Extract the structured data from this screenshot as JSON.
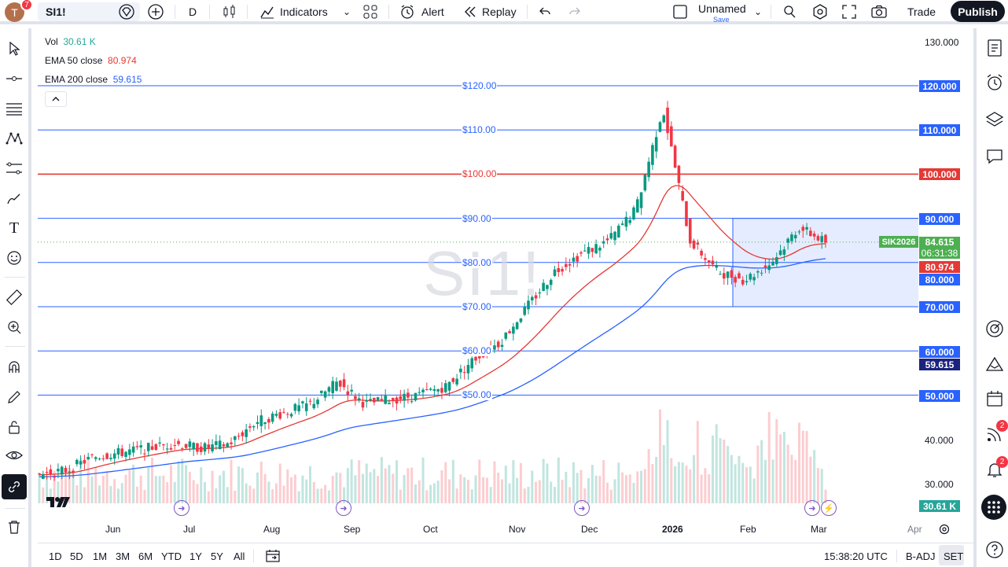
{
  "topbar": {
    "avatar_letter": "T",
    "avatar_badge": "7",
    "symbol": "SI1!",
    "interval": "D",
    "indicators_label": "Indicators",
    "alert_label": "Alert",
    "replay_label": "Replay",
    "layout_name": "Unnamed",
    "layout_save": "Save",
    "trade_label": "Trade",
    "publish_label": "Publish"
  },
  "legend": {
    "vol_label": "Vol",
    "vol_value": "30.61 K",
    "ema50_label": "EMA 50 close",
    "ema50_value": "80.974",
    "ema200_label": "EMA 200 close",
    "ema200_value": "59.615"
  },
  "watermark": "SI1!",
  "price_scale": {
    "labels": [
      "130.000",
      "40.000",
      "30.000"
    ],
    "tags": [
      {
        "text": "120.000",
        "color": "#2962ff"
      },
      {
        "text": "110.000",
        "color": "#2962ff"
      },
      {
        "text": "100.000",
        "color": "#e53935"
      },
      {
        "text": "90.000",
        "color": "#2962ff"
      },
      {
        "text": "84.615",
        "color": "#4caf50"
      },
      {
        "text": "06:31:38",
        "color": "#4caf50"
      },
      {
        "text": "80.974",
        "color": "#e53935"
      },
      {
        "text": "80.000",
        "color": "#2962ff"
      },
      {
        "text": "70.000",
        "color": "#2962ff"
      },
      {
        "text": "60.000",
        "color": "#2962ff"
      },
      {
        "text": "59.615",
        "color": "#1a237e"
      },
      {
        "text": "50.000",
        "color": "#2962ff"
      },
      {
        "text": "30.61 K",
        "color": "#26a69a"
      }
    ],
    "contract_tag": "SIK2026"
  },
  "hlines": [
    {
      "label": "$120.00",
      "price": 120,
      "color": "#2962ff"
    },
    {
      "label": "$110.00",
      "price": 110,
      "color": "#2962ff"
    },
    {
      "label": "$100.00",
      "price": 100,
      "color": "#e53935"
    },
    {
      "label": "$90.00",
      "price": 90,
      "color": "#2962ff"
    },
    {
      "label": "$80.00",
      "price": 80,
      "color": "#2962ff"
    },
    {
      "label": "$70.00",
      "price": 70,
      "color": "#2962ff"
    },
    {
      "label": "$60.00",
      "price": 60,
      "color": "#2962ff"
    },
    {
      "label": "$50.00",
      "price": 50,
      "color": "#2962ff"
    }
  ],
  "time_axis": [
    "Jun",
    "Jul",
    "Aug",
    "Sep",
    "Oct",
    "Nov",
    "Dec",
    "2026",
    "Feb",
    "Mar",
    "Apr"
  ],
  "bottombar": {
    "ranges": [
      "1D",
      "5D",
      "1M",
      "3M",
      "6M",
      "YTD",
      "1Y",
      "5Y",
      "All"
    ],
    "clock": "15:38:20 UTC",
    "adj": "B-ADJ",
    "session": "SET"
  },
  "right_badges": {
    "ideas": "2",
    "alerts": "2"
  },
  "colors": {
    "up": "#089981",
    "down": "#f23645",
    "ema50": "#e53935",
    "ema200": "#2962ff"
  },
  "chart_data": {
    "type": "candlestick",
    "symbol": "SI1!",
    "series": [
      {
        "name": "Price (approx. weekly close)",
        "values": [
          32,
          33,
          36,
          37,
          38,
          39,
          38,
          39,
          44,
          46,
          48,
          53,
          48,
          49,
          50,
          52,
          58,
          62,
          70,
          78,
          82,
          85,
          92,
          115,
          85,
          78,
          76,
          80,
          88,
          84.6
        ]
      },
      {
        "name": "EMA 50 close",
        "last": 80.974
      },
      {
        "name": "EMA 200 close",
        "last": 59.615
      }
    ],
    "ylim": [
      25,
      130
    ]
  }
}
